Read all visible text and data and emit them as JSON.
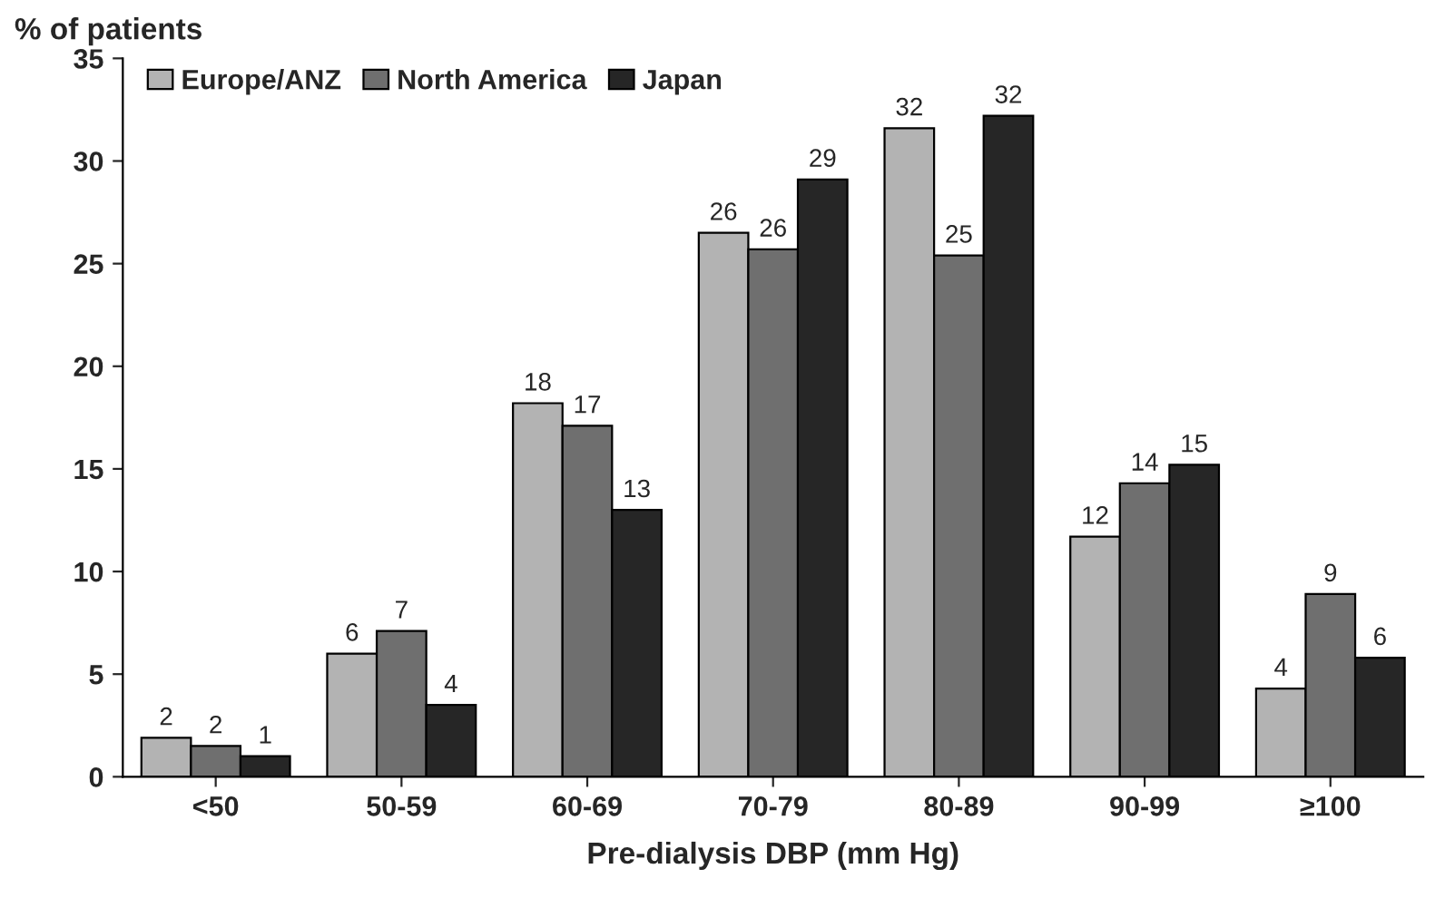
{
  "chart_data": {
    "type": "bar",
    "ylabel": "% of patients",
    "xlabel": "Pre-dialysis DBP (mm Hg)",
    "categories": [
      "<50",
      "50-59",
      "60-69",
      "70-79",
      "80-89",
      "90-99",
      "≥100"
    ],
    "series": [
      {
        "name": "Europe/ANZ",
        "color": "#b3b3b3",
        "values": [
          1.9,
          6.0,
          18.2,
          26.5,
          31.6,
          11.7,
          4.3
        ],
        "value_labels": [
          "2",
          "6",
          "18",
          "26",
          "32",
          "12",
          "4"
        ]
      },
      {
        "name": "North America",
        "color": "#6f6f6f",
        "values": [
          1.5,
          7.1,
          17.1,
          25.7,
          25.4,
          14.3,
          8.9
        ],
        "value_labels": [
          "2",
          "7",
          "17",
          "26",
          "25",
          "14",
          "9"
        ]
      },
      {
        "name": "Japan",
        "color": "#262626",
        "values": [
          1.0,
          3.5,
          13.0,
          29.1,
          32.2,
          15.2,
          5.8
        ],
        "value_labels": [
          "1",
          "4",
          "13",
          "29",
          "32",
          "15",
          "6"
        ]
      }
    ],
    "ylim": [
      0,
      35
    ],
    "yticks": [
      0,
      5,
      10,
      15,
      20,
      25,
      30,
      35
    ],
    "grid": false,
    "legend": "top left"
  }
}
